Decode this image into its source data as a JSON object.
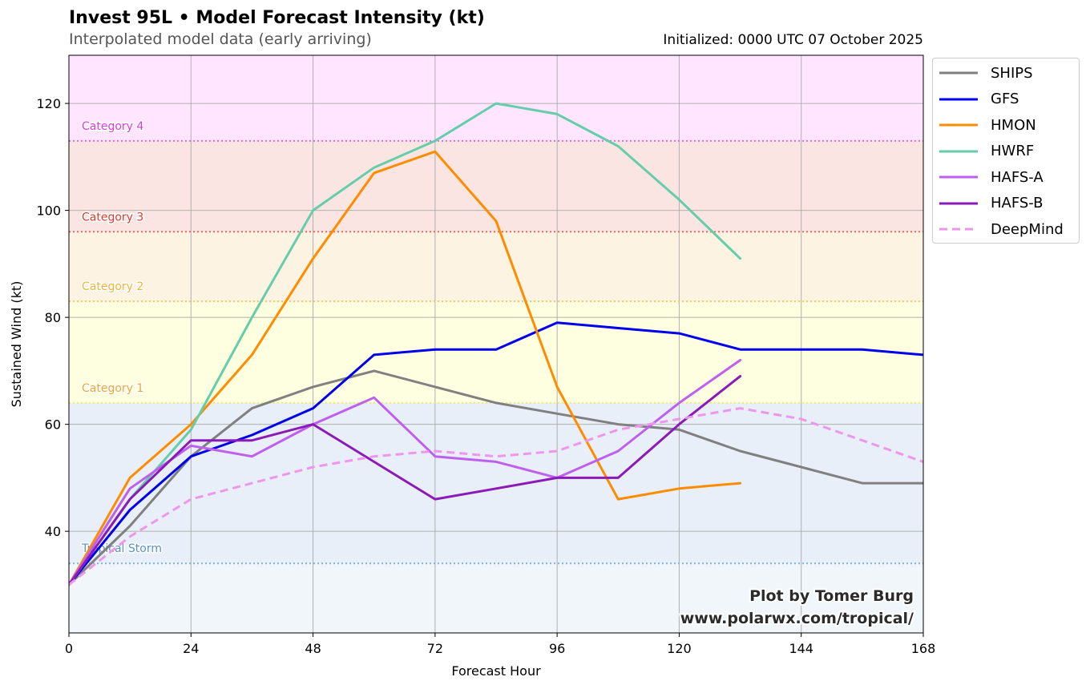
{
  "header": {
    "title": "Invest 95L • Model Forecast Intensity (kt)",
    "subtitle": "Interpolated model data (early arriving)",
    "initialized": "Initialized: 0000 UTC 07 October 2025"
  },
  "credit": {
    "line1": "Plot by Tomer Burg",
    "line2": "www.polarwx.com/tropical/"
  },
  "colors": {
    "band_ts": "#e8eff8",
    "band_below": "#f1f6fb"
  },
  "chart_data": {
    "type": "line",
    "title": "Invest 95L • Model Forecast Intensity (kt)",
    "xlabel": "Forecast Hour",
    "ylabel": "Sustained Wind (kt)",
    "xlim": [
      0,
      168
    ],
    "ylim": [
      21,
      129
    ],
    "xticks": [
      0,
      24,
      48,
      72,
      96,
      120,
      144,
      168
    ],
    "yticks": [
      40,
      60,
      80,
      100,
      120
    ],
    "grid": true,
    "legend_position": "outside-top-right",
    "categories": [
      {
        "name": "Tropical Storm",
        "threshold": 34,
        "line_color": "#7fb2e5",
        "label_color": "#5a91c4",
        "band_color": "#e8eff8"
      },
      {
        "name": "Category 1",
        "threshold": 64,
        "line_color": "#f2ea6b",
        "label_color": "#eda830",
        "band_color": "#fefee0"
      },
      {
        "name": "Category 2",
        "threshold": 83,
        "line_color": "#f4c761",
        "label_color": "#f2b33a",
        "band_color": "#fdf3e2"
      },
      {
        "name": "Category 3",
        "threshold": 96,
        "line_color": "#f0665a",
        "label_color": "#d93b30",
        "band_color": "#fbe5e2"
      },
      {
        "name": "Category 4",
        "threshold": 113,
        "line_color": "#e466e4",
        "label_color": "#d93ad9",
        "band_color": "#ffe5ff"
      }
    ],
    "series": [
      {
        "name": "SHIPS",
        "color": "#808080",
        "dashed": false,
        "x": [
          0,
          12,
          24,
          36,
          48,
          60,
          72,
          84,
          96,
          108,
          120,
          132,
          144,
          156,
          168
        ],
        "values": [
          30,
          41,
          54,
          63,
          67,
          70,
          67,
          64,
          62,
          60,
          59,
          55,
          52,
          49,
          49
        ]
      },
      {
        "name": "GFS",
        "color": "#0000ee",
        "dashed": false,
        "x": [
          0,
          12,
          24,
          36,
          48,
          60,
          72,
          84,
          96,
          108,
          120,
          132,
          144,
          156,
          168
        ],
        "values": [
          30,
          44,
          54,
          58,
          63,
          73,
          74,
          74,
          79,
          78,
          77,
          74,
          74,
          74,
          73
        ]
      },
      {
        "name": "HMON",
        "color": "#ff8c00",
        "dashed": false,
        "x": [
          0,
          12,
          24,
          36,
          48,
          60,
          72,
          84,
          96,
          108,
          120,
          132
        ],
        "values": [
          30,
          50,
          60,
          73,
          91,
          107,
          111,
          98,
          67,
          46,
          48,
          49
        ]
      },
      {
        "name": "HWRF",
        "color": "#66cdaa",
        "dashed": false,
        "x": [
          0,
          12,
          24,
          36,
          48,
          60,
          72,
          84,
          96,
          108,
          120,
          132
        ],
        "values": [
          30,
          46,
          59,
          80,
          100,
          108,
          113,
          120,
          118,
          112,
          102,
          91
        ]
      },
      {
        "name": "HAFS-A",
        "color": "#bf5ff0",
        "dashed": false,
        "x": [
          0,
          12,
          24,
          36,
          48,
          60,
          72,
          84,
          96,
          108,
          120,
          132
        ],
        "values": [
          30,
          48,
          56,
          54,
          60,
          65,
          54,
          53,
          50,
          55,
          64,
          72
        ]
      },
      {
        "name": "HAFS-B",
        "color": "#8b1ab8",
        "dashed": false,
        "x": [
          0,
          12,
          24,
          36,
          48,
          60,
          72,
          84,
          96,
          108,
          120,
          132
        ],
        "values": [
          30,
          46,
          57,
          57,
          60,
          53,
          46,
          48,
          50,
          50,
          60,
          69
        ]
      },
      {
        "name": "DeepMind",
        "color": "#ee96ee",
        "dashed": true,
        "x": [
          0,
          12,
          24,
          36,
          48,
          60,
          72,
          84,
          96,
          108,
          120,
          132,
          144,
          156,
          168
        ],
        "values": [
          30,
          39,
          46,
          49,
          52,
          54,
          55,
          54,
          55,
          59,
          61,
          63,
          61,
          57,
          53
        ]
      }
    ]
  }
}
